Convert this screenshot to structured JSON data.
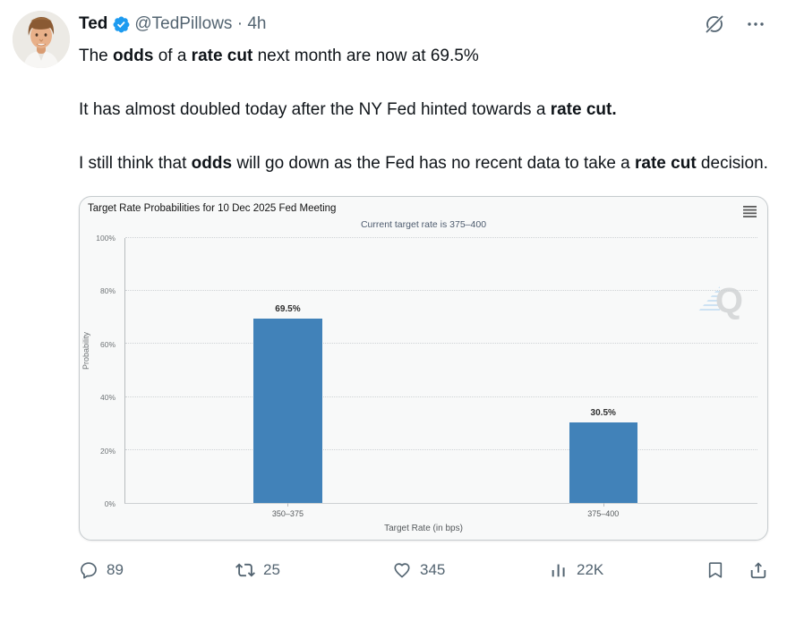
{
  "header": {
    "name": "Ted",
    "handle": "@TedPillows",
    "separator": " · ",
    "time": "4h"
  },
  "body": {
    "paragraphs": [
      [
        {
          "t": "The ",
          "b": 0
        },
        {
          "t": "odds",
          "b": 1
        },
        {
          "t": " of a ",
          "b": 0
        },
        {
          "t": "rate cut",
          "b": 1
        },
        {
          "t": " next month are now at 69.5%",
          "b": 0
        }
      ],
      [
        {
          "t": "It has almost doubled today after the NY Fed hinted towards a ",
          "b": 0
        },
        {
          "t": "rate cut.",
          "b": 1
        }
      ],
      [
        {
          "t": "I still think that ",
          "b": 0
        },
        {
          "t": "odds",
          "b": 1
        },
        {
          "t": " will go down as the Fed has no recent data to take a ",
          "b": 0
        },
        {
          "t": "rate cut",
          "b": 1
        },
        {
          "t": " decision.",
          "b": 0
        }
      ]
    ]
  },
  "chart_data": {
    "type": "bar",
    "title": "Target Rate Probabilities for 10 Dec 2025 Fed Meeting",
    "subtitle": "Current target rate is 375–400",
    "categories": [
      "350–375",
      "375–400"
    ],
    "values": [
      69.5,
      30.5
    ],
    "value_labels": [
      "69.5%",
      "30.5%"
    ],
    "xlabel": "Target Rate (in bps)",
    "ylabel": "Probability",
    "ylim": [
      0,
      100
    ],
    "y_ticks": [
      "0%",
      "20%",
      "40%",
      "60%",
      "80%",
      "100%"
    ],
    "bar_color": "#4182b9",
    "grid": "dotted horizontal",
    "legend": "none",
    "watermark": "Q"
  },
  "actions": {
    "reply": "89",
    "repost": "25",
    "like": "345",
    "views": "22K"
  },
  "colors": {
    "text": "#0f1419",
    "muted": "#536471",
    "verified": "#1d9bf0",
    "bar": "#4182b9"
  }
}
